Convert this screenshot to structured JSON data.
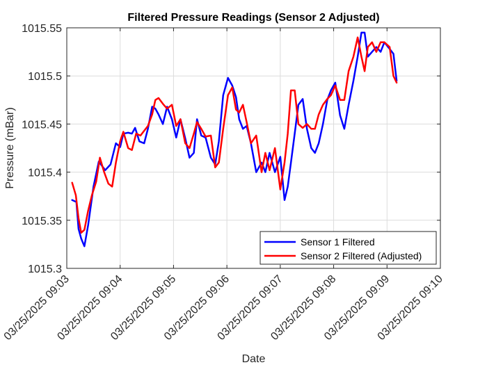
{
  "chart_data": {
    "type": "line",
    "title": "Filtered Pressure Readings (Sensor 2 Adjusted)",
    "xlabel": "Date",
    "ylabel": "Pressure (mBar)",
    "ylim": [
      1015.3,
      1015.55
    ],
    "yticks": [
      1015.3,
      1015.35,
      1015.4,
      1015.45,
      1015.5,
      1015.55
    ],
    "ytick_labels": [
      "1015.3",
      "1015.35",
      "1015.4",
      "1015.45",
      "1015.5",
      "1015.55"
    ],
    "x_unit": "minutes after 09:03",
    "xlim": [
      0,
      7
    ],
    "xticks": [
      0,
      1,
      2,
      3,
      4,
      5,
      6,
      7
    ],
    "xtick_labels": [
      "03/25/2025 09:03",
      "03/25/2025 09:04",
      "03/25/2025 09:05",
      "03/25/2025 09:06",
      "03/25/2025 09:07",
      "03/25/2025 09:08",
      "03/25/2025 09:09",
      "03/25/2025 09:10"
    ],
    "grid": true,
    "legend_position": "bottom-right",
    "series": [
      {
        "name": "Sensor 1 Filtered",
        "color": "#0000ff",
        "x": [
          0.1,
          0.18,
          0.22,
          0.27,
          0.33,
          0.4,
          0.5,
          0.6,
          0.72,
          0.82,
          0.92,
          1.0,
          1.06,
          1.15,
          1.22,
          1.28,
          1.36,
          1.45,
          1.52,
          1.6,
          1.66,
          1.72,
          1.8,
          1.88,
          1.97,
          2.05,
          2.13,
          2.22,
          2.3,
          2.38,
          2.44,
          2.52,
          2.6,
          2.7,
          2.78,
          2.85,
          2.93,
          3.02,
          3.1,
          3.17,
          3.23,
          3.3,
          3.37,
          3.45,
          3.55,
          3.65,
          3.72,
          3.8,
          3.9,
          4.0,
          4.08,
          4.14,
          4.2,
          4.27,
          4.34,
          4.42,
          4.5,
          4.58,
          4.65,
          4.72,
          4.8,
          4.88,
          4.95,
          5.03,
          5.12,
          5.2,
          5.28,
          5.37,
          5.45,
          5.52,
          5.58,
          5.64,
          5.72,
          5.8,
          5.88,
          5.95,
          6.05,
          6.12,
          6.18
        ],
        "values": [
          1015.371,
          1015.369,
          1015.341,
          1015.331,
          1015.323,
          1015.345,
          1015.385,
          1015.411,
          1015.402,
          1015.408,
          1015.43,
          1015.426,
          1015.44,
          1015.441,
          1015.44,
          1015.446,
          1015.432,
          1015.43,
          1015.445,
          1015.468,
          1015.466,
          1015.46,
          1015.45,
          1015.468,
          1015.455,
          1015.436,
          1015.455,
          1015.435,
          1015.415,
          1015.42,
          1015.455,
          1015.438,
          1015.436,
          1015.415,
          1015.408,
          1015.432,
          1015.48,
          1015.498,
          1015.49,
          1015.478,
          1015.455,
          1015.445,
          1015.448,
          1015.43,
          1015.4,
          1015.41,
          1015.4,
          1015.42,
          1015.4,
          1015.416,
          1015.371,
          1015.385,
          1015.41,
          1015.44,
          1015.47,
          1015.476,
          1015.445,
          1015.425,
          1015.42,
          1015.43,
          1015.45,
          1015.475,
          1015.485,
          1015.493,
          1015.459,
          1015.445,
          1015.47,
          1015.495,
          1015.52,
          1015.545,
          1015.545,
          1015.52,
          1015.525,
          1015.53,
          1015.525,
          1015.535,
          1015.528,
          1015.523,
          1015.495
        ]
      },
      {
        "name": "Sensor 2 Filtered (Adjusted)",
        "color": "#ff0000",
        "x": [
          0.1,
          0.17,
          0.22,
          0.27,
          0.33,
          0.4,
          0.47,
          0.55,
          0.62,
          0.7,
          0.78,
          0.85,
          0.92,
          1.0,
          1.06,
          1.15,
          1.22,
          1.3,
          1.38,
          1.45,
          1.52,
          1.6,
          1.66,
          1.72,
          1.8,
          1.88,
          1.97,
          2.05,
          2.13,
          2.22,
          2.3,
          2.38,
          2.44,
          2.52,
          2.6,
          2.7,
          2.78,
          2.85,
          2.93,
          3.02,
          3.1,
          3.17,
          3.23,
          3.3,
          3.37,
          3.45,
          3.55,
          3.65,
          3.72,
          3.8,
          3.9,
          4.0,
          4.08,
          4.14,
          4.2,
          4.27,
          4.34,
          4.42,
          4.5,
          4.58,
          4.65,
          4.72,
          4.8,
          4.88,
          4.95,
          5.03,
          5.12,
          5.2,
          5.28,
          5.37,
          5.45,
          5.52,
          5.58,
          5.64,
          5.72,
          5.8,
          5.88,
          5.95,
          6.05,
          6.12,
          6.18
        ],
        "values": [
          1015.389,
          1015.376,
          1015.352,
          1015.337,
          1015.34,
          1015.36,
          1015.376,
          1015.39,
          1015.415,
          1015.4,
          1015.388,
          1015.385,
          1015.41,
          1015.432,
          1015.442,
          1015.425,
          1015.423,
          1015.44,
          1015.438,
          1015.443,
          1015.448,
          1015.46,
          1015.475,
          1015.477,
          1015.471,
          1015.466,
          1015.47,
          1015.448,
          1015.455,
          1015.43,
          1015.425,
          1015.44,
          1015.452,
          1015.445,
          1015.437,
          1015.438,
          1015.405,
          1015.41,
          1015.445,
          1015.48,
          1015.488,
          1015.465,
          1015.462,
          1015.47,
          1015.452,
          1015.43,
          1015.438,
          1015.4,
          1015.42,
          1015.402,
          1015.425,
          1015.382,
          1015.41,
          1015.44,
          1015.485,
          1015.485,
          1015.45,
          1015.446,
          1015.45,
          1015.445,
          1015.445,
          1015.46,
          1015.47,
          1015.476,
          1015.48,
          1015.49,
          1015.475,
          1015.475,
          1015.505,
          1015.52,
          1015.54,
          1015.52,
          1015.505,
          1015.53,
          1015.535,
          1015.525,
          1015.535,
          1015.535,
          1015.53,
          1015.5,
          1015.493
        ]
      }
    ]
  }
}
